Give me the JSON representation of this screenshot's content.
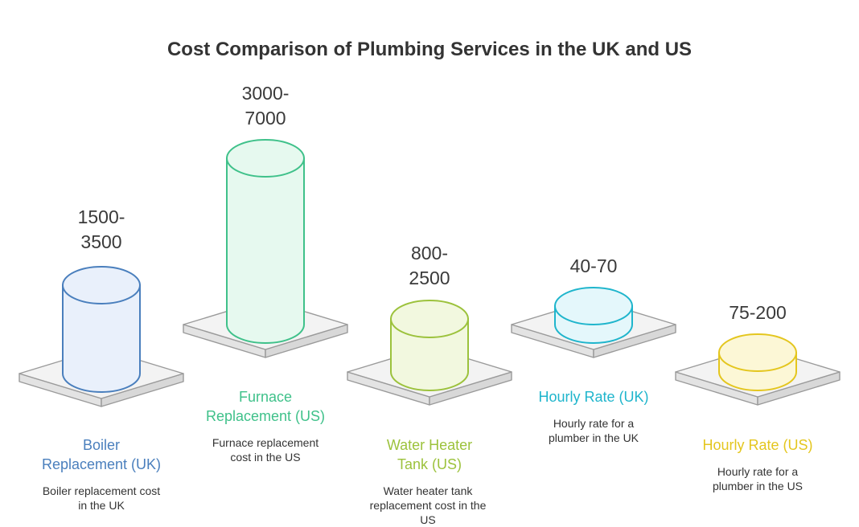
{
  "title": "Cost Comparison of Plumbing Services in the UK and US",
  "items": [
    {
      "value_line1": "1500-",
      "value_line2": "3500",
      "label_line1": "Boiler",
      "label_line2": "Replacement (UK)",
      "desc_line1": "Boiler replacement cost",
      "desc_line2": "in the UK",
      "desc_line3": "",
      "color": "#4a7fbd",
      "fill": "#e9f0fb"
    },
    {
      "value_line1": "3000-",
      "value_line2": "7000",
      "label_line1": "Furnace",
      "label_line2": "Replacement (US)",
      "desc_line1": "Furnace replacement",
      "desc_line2": "cost in the US",
      "desc_line3": "",
      "color": "#3fc18a",
      "fill": "#e6f9ef"
    },
    {
      "value_line1": "800-",
      "value_line2": "2500",
      "label_line1": "Water Heater",
      "label_line2": "Tank (US)",
      "desc_line1": "Water heater tank",
      "desc_line2": "replacement cost in the",
      "desc_line3": "US",
      "color": "#9cc23c",
      "fill": "#f2f8df"
    },
    {
      "value_line1": "40-70",
      "value_line2": "",
      "label_line1": "Hourly Rate (UK)",
      "label_line2": "",
      "desc_line1": "Hourly rate for a",
      "desc_line2": "plumber in the UK",
      "desc_line3": "",
      "color": "#1fb5cc",
      "fill": "#e4f7fb"
    },
    {
      "value_line1": "75-200",
      "value_line2": "",
      "label_line1": "Hourly Rate (US)",
      "label_line2": "",
      "desc_line1": "Hourly rate for a",
      "desc_line2": "plumber in the US",
      "desc_line3": "",
      "color": "#e4c61e",
      "fill": "#fcf7d6"
    }
  ]
}
